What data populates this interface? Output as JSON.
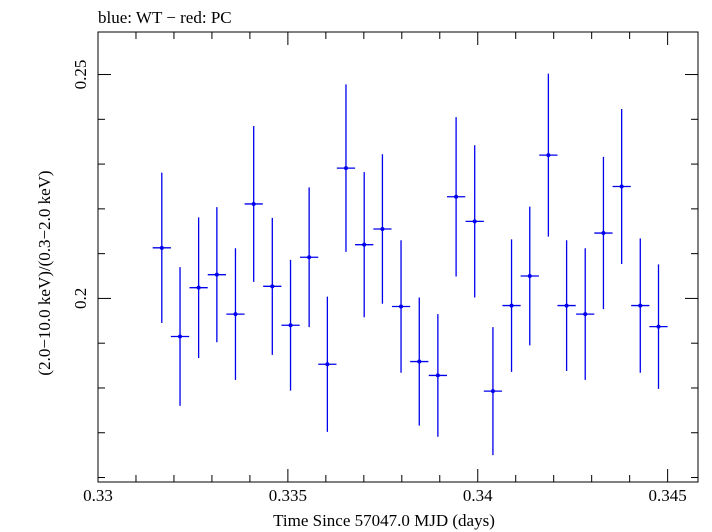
{
  "chart_data": {
    "type": "scatter",
    "title": "blue: WT − red: PC",
    "xlabel": "Time Since 57047.0 MJD (days)",
    "ylabel": "(2.0−10.0 keV)/(0.3−2.0 keV)",
    "xlim": [
      0.33,
      0.3458
    ],
    "ylim": [
      0.159,
      0.2595
    ],
    "x_ticks": [
      {
        "value": 0.33,
        "label": "0.33"
      },
      {
        "value": 0.335,
        "label": "0.335"
      },
      {
        "value": 0.34,
        "label": "0.34"
      },
      {
        "value": 0.345,
        "label": "0.345"
      }
    ],
    "y_ticks": [
      {
        "value": 0.2,
        "label": "0.2"
      },
      {
        "value": 0.25,
        "label": "0.25"
      }
    ],
    "grid": false,
    "series": [
      {
        "name": "WT",
        "color": "#0000ee",
        "points": [
          {
            "x": 0.33168,
            "xerr": 0.00024,
            "y": 0.2113,
            "yerr": 0.0168
          },
          {
            "x": 0.33216,
            "xerr": 0.00024,
            "y": 0.1915,
            "yerr": 0.0155
          },
          {
            "x": 0.33265,
            "xerr": 0.00024,
            "y": 0.2024,
            "yerr": 0.0157
          },
          {
            "x": 0.33313,
            "xerr": 0.00024,
            "y": 0.2053,
            "yerr": 0.0151
          },
          {
            "x": 0.33362,
            "xerr": 0.00024,
            "y": 0.1965,
            "yerr": 0.0147
          },
          {
            "x": 0.3341,
            "xerr": 0.00024,
            "y": 0.2211,
            "yerr": 0.0174
          },
          {
            "x": 0.33459,
            "xerr": 0.00024,
            "y": 0.2027,
            "yerr": 0.0153
          },
          {
            "x": 0.33507,
            "xerr": 0.00024,
            "y": 0.194,
            "yerr": 0.0146
          },
          {
            "x": 0.33556,
            "xerr": 0.00024,
            "y": 0.2092,
            "yerr": 0.0156
          },
          {
            "x": 0.33604,
            "xerr": 0.00024,
            "y": 0.1853,
            "yerr": 0.0151
          },
          {
            "x": 0.33653,
            "xerr": 0.00024,
            "y": 0.2291,
            "yerr": 0.0187
          },
          {
            "x": 0.33701,
            "xerr": 0.00024,
            "y": 0.212,
            "yerr": 0.0162
          },
          {
            "x": 0.33749,
            "xerr": 0.00024,
            "y": 0.2155,
            "yerr": 0.0167
          },
          {
            "x": 0.33798,
            "xerr": 0.00024,
            "y": 0.1982,
            "yerr": 0.0148
          },
          {
            "x": 0.33846,
            "xerr": 0.00024,
            "y": 0.1859,
            "yerr": 0.0143
          },
          {
            "x": 0.33895,
            "xerr": 0.00024,
            "y": 0.1828,
            "yerr": 0.0137
          },
          {
            "x": 0.33943,
            "xerr": 0.00024,
            "y": 0.2227,
            "yerr": 0.0178
          },
          {
            "x": 0.33992,
            "xerr": 0.00024,
            "y": 0.2172,
            "yerr": 0.017
          },
          {
            "x": 0.3404,
            "xerr": 0.00024,
            "y": 0.1793,
            "yerr": 0.0143
          },
          {
            "x": 0.34089,
            "xerr": 0.00024,
            "y": 0.1984,
            "yerr": 0.0148
          },
          {
            "x": 0.34137,
            "xerr": 0.00024,
            "y": 0.205,
            "yerr": 0.0155
          },
          {
            "x": 0.34186,
            "xerr": 0.00024,
            "y": 0.232,
            "yerr": 0.0182
          },
          {
            "x": 0.34234,
            "xerr": 0.00024,
            "y": 0.1984,
            "yerr": 0.0146
          },
          {
            "x": 0.34283,
            "xerr": 0.00024,
            "y": 0.1965,
            "yerr": 0.0147
          },
          {
            "x": 0.34331,
            "xerr": 0.00024,
            "y": 0.2146,
            "yerr": 0.017
          },
          {
            "x": 0.34379,
            "xerr": 0.00024,
            "y": 0.225,
            "yerr": 0.0173
          },
          {
            "x": 0.34428,
            "xerr": 0.00024,
            "y": 0.1984,
            "yerr": 0.015
          },
          {
            "x": 0.34476,
            "xerr": 0.00024,
            "y": 0.1937,
            "yerr": 0.0139
          }
        ]
      }
    ]
  }
}
